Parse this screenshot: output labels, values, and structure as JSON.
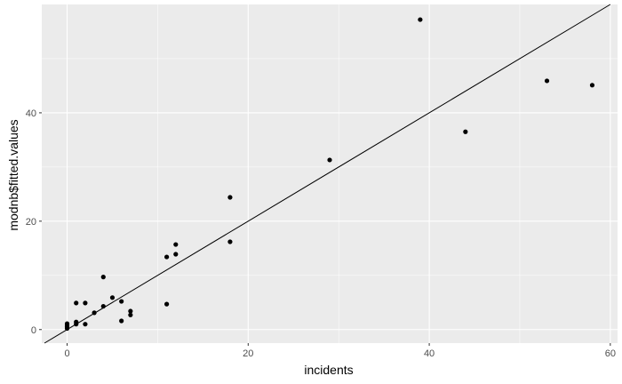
{
  "chart_data": {
    "type": "scatter",
    "xlabel": "incidents",
    "ylabel": "modnb$fitted.values",
    "xlim": [
      -2.8,
      60.8
    ],
    "ylim": [
      -2.5,
      60.0
    ],
    "x_ticks": [
      0,
      20,
      40,
      60
    ],
    "x_tick_labels": [
      "0",
      "20",
      "40",
      "60"
    ],
    "y_ticks": [
      0,
      20,
      40
    ],
    "y_tick_labels": [
      "0",
      "20",
      "40"
    ],
    "grid": true,
    "reference_line": {
      "slope": 1,
      "intercept": 0
    },
    "colors": {
      "panel": "#ebebeb",
      "grid": "#ffffff",
      "point": "#000000",
      "line": "#000000"
    },
    "points": [
      {
        "x": 0,
        "y": 0.2
      },
      {
        "x": 0,
        "y": 0.5
      },
      {
        "x": 0,
        "y": 0.8
      },
      {
        "x": 0,
        "y": 1.1
      },
      {
        "x": 1,
        "y": 1.0
      },
      {
        "x": 1,
        "y": 1.4
      },
      {
        "x": 1,
        "y": 4.9
      },
      {
        "x": 2,
        "y": 1.0
      },
      {
        "x": 2,
        "y": 4.9
      },
      {
        "x": 3,
        "y": 3.1
      },
      {
        "x": 4,
        "y": 4.3
      },
      {
        "x": 4,
        "y": 9.7
      },
      {
        "x": 5,
        "y": 5.9
      },
      {
        "x": 6,
        "y": 1.6
      },
      {
        "x": 6,
        "y": 5.2
      },
      {
        "x": 7,
        "y": 2.7
      },
      {
        "x": 7,
        "y": 3.4
      },
      {
        "x": 11,
        "y": 4.7
      },
      {
        "x": 11,
        "y": 13.4
      },
      {
        "x": 12,
        "y": 13.9
      },
      {
        "x": 12,
        "y": 15.7
      },
      {
        "x": 18,
        "y": 16.2
      },
      {
        "x": 18,
        "y": 24.4
      },
      {
        "x": 29,
        "y": 31.3
      },
      {
        "x": 39,
        "y": 57.2
      },
      {
        "x": 44,
        "y": 36.5
      },
      {
        "x": 53,
        "y": 45.9
      },
      {
        "x": 58,
        "y": 45.1
      }
    ]
  }
}
